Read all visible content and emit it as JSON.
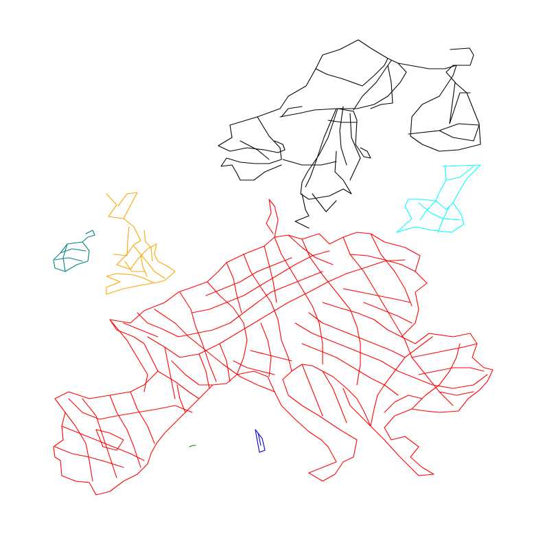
{
  "map": {
    "background": "#ffffff",
    "grids": [
      {
        "id": "continental-europe",
        "color": "#ff0000"
      },
      {
        "id": "nordic",
        "color": "#000000"
      },
      {
        "id": "baltic",
        "color": "#00ffff"
      },
      {
        "id": "great-britain",
        "color": "#ffa500"
      },
      {
        "id": "ireland",
        "color": "#008080"
      },
      {
        "id": "sardinia",
        "color": "#0000cd"
      },
      {
        "id": "balearic",
        "color": "#008000"
      }
    ]
  }
}
